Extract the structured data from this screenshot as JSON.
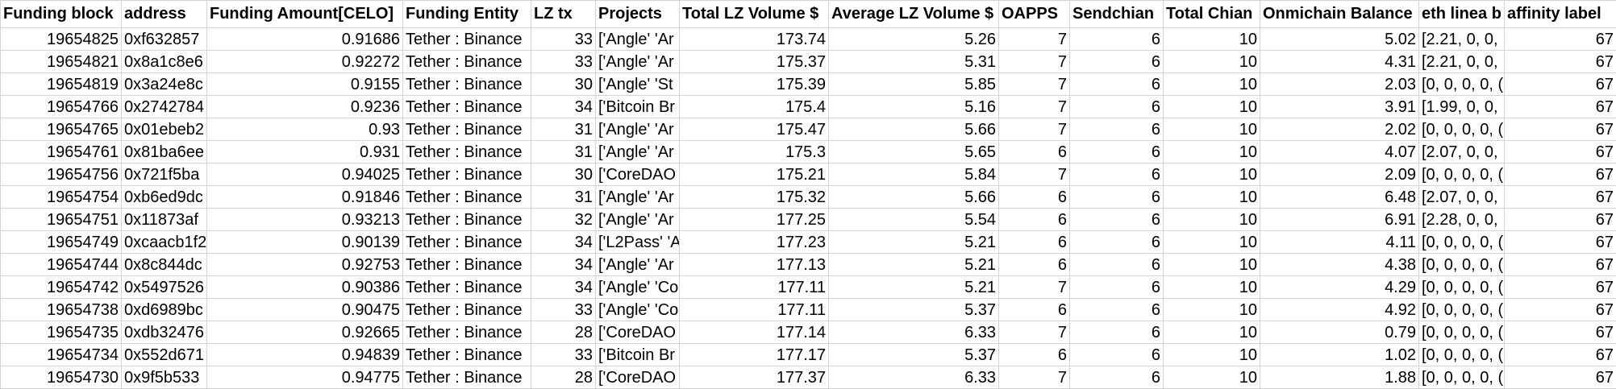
{
  "sheet": {
    "headers": [
      "Funding block",
      "address",
      "Funding Amount[CELO]",
      "Funding Entity",
      "LZ tx",
      "Projects",
      "Total LZ Volume $",
      "Average LZ Volume $",
      "OAPPS",
      "Sendchian",
      "Total Chian",
      "Onmichain Balance",
      "eth linea b",
      "affinity label"
    ],
    "rows": [
      [
        "19654825",
        "0xf632857",
        "0.91686",
        "Tether : Binance",
        "33",
        "['Angle' 'Ar",
        "173.74",
        "5.26",
        "7",
        "6",
        "10",
        "5.02",
        "[2.21, 0, 0,",
        "67"
      ],
      [
        "19654821",
        "0x8a1c8e6",
        "0.92272",
        "Tether : Binance",
        "33",
        "['Angle' 'Ar",
        "175.37",
        "5.31",
        "7",
        "6",
        "10",
        "4.31",
        "[2.21, 0, 0,",
        "67"
      ],
      [
        "19654819",
        "0x3a24e8c",
        "0.9155",
        "Tether : Binance",
        "30",
        "['Angle' 'St",
        "175.39",
        "5.85",
        "7",
        "6",
        "10",
        "2.03",
        "[0, 0, 0, 0, (",
        "67"
      ],
      [
        "19654766",
        "0x2742784",
        "0.9236",
        "Tether : Binance",
        "34",
        "['Bitcoin Br",
        "175.4",
        "5.16",
        "7",
        "6",
        "10",
        "3.91",
        "[1.99, 0, 0,",
        "67"
      ],
      [
        "19654765",
        "0x01ebeb2",
        "0.93",
        "Tether : Binance",
        "31",
        "['Angle' 'Ar",
        "175.47",
        "5.66",
        "7",
        "6",
        "10",
        "2.02",
        "[0, 0, 0, 0, (",
        "67"
      ],
      [
        "19654761",
        "0x81ba6ee",
        "0.931",
        "Tether : Binance",
        "31",
        "['Angle' 'Ar",
        "175.3",
        "5.65",
        "6",
        "6",
        "10",
        "4.07",
        "[2.07, 0, 0,",
        "67"
      ],
      [
        "19654756",
        "0x721f5ba",
        "0.94025",
        "Tether : Binance",
        "30",
        "['CoreDAO",
        "175.21",
        "5.84",
        "7",
        "6",
        "10",
        "2.09",
        "[0, 0, 0, 0, (",
        "67"
      ],
      [
        "19654754",
        "0xb6ed9dc",
        "0.91846",
        "Tether : Binance",
        "31",
        "['Angle' 'Ar",
        "175.32",
        "5.66",
        "6",
        "6",
        "10",
        "6.48",
        "[2.07, 0, 0,",
        "67"
      ],
      [
        "19654751",
        "0x11873af",
        "0.93213",
        "Tether : Binance",
        "32",
        "['Angle' 'Ar",
        "177.25",
        "5.54",
        "6",
        "6",
        "10",
        "6.91",
        "[2.28, 0, 0,",
        "67"
      ],
      [
        "19654749",
        "0xcaacb1f2",
        "0.90139",
        "Tether : Binance",
        "34",
        "['L2Pass' 'A",
        "177.23",
        "5.21",
        "6",
        "6",
        "10",
        "4.11",
        "[0, 0, 0, 0, (",
        "67"
      ],
      [
        "19654744",
        "0x8c844dc",
        "0.92753",
        "Tether : Binance",
        "34",
        "['Angle' 'Ar",
        "177.13",
        "5.21",
        "6",
        "6",
        "10",
        "4.38",
        "[0, 0, 0, 0, (",
        "67"
      ],
      [
        "19654742",
        "0x5497526",
        "0.90386",
        "Tether : Binance",
        "34",
        "['Angle' 'Co",
        "177.11",
        "5.21",
        "7",
        "6",
        "10",
        "4.29",
        "[0, 0, 0, 0, (",
        "67"
      ],
      [
        "19654738",
        "0xd6989bc",
        "0.90475",
        "Tether : Binance",
        "33",
        "['Angle' 'Co",
        "177.11",
        "5.37",
        "6",
        "6",
        "10",
        "4.92",
        "[0, 0, 0, 0, (",
        "67"
      ],
      [
        "19654735",
        "0xdb32476",
        "0.92665",
        "Tether : Binance",
        "28",
        "['CoreDAO",
        "177.14",
        "6.33",
        "7",
        "6",
        "10",
        "0.79",
        "[0, 0, 0, 0, (",
        "67"
      ],
      [
        "19654734",
        "0x552d671",
        "0.94839",
        "Tether : Binance",
        "33",
        "['Bitcoin Br",
        "177.17",
        "5.37",
        "6",
        "6",
        "10",
        "1.02",
        "[0, 0, 0, 0, (",
        "67"
      ],
      [
        "19654730",
        "0x9f5b533",
        "0.94775",
        "Tether : Binance",
        "28",
        "['CoreDAO",
        "177.37",
        "6.33",
        "7",
        "6",
        "10",
        "1.88",
        "[0, 0, 0, 0, (",
        "67"
      ]
    ],
    "align": [
      "num",
      "txt",
      "num",
      "txt",
      "num",
      "txt",
      "num",
      "num",
      "num",
      "num",
      "num",
      "num",
      "txt",
      "num"
    ],
    "colors": {
      "gridline": "#d4d4d4",
      "background": "#ffffff",
      "text": "#000000"
    }
  }
}
